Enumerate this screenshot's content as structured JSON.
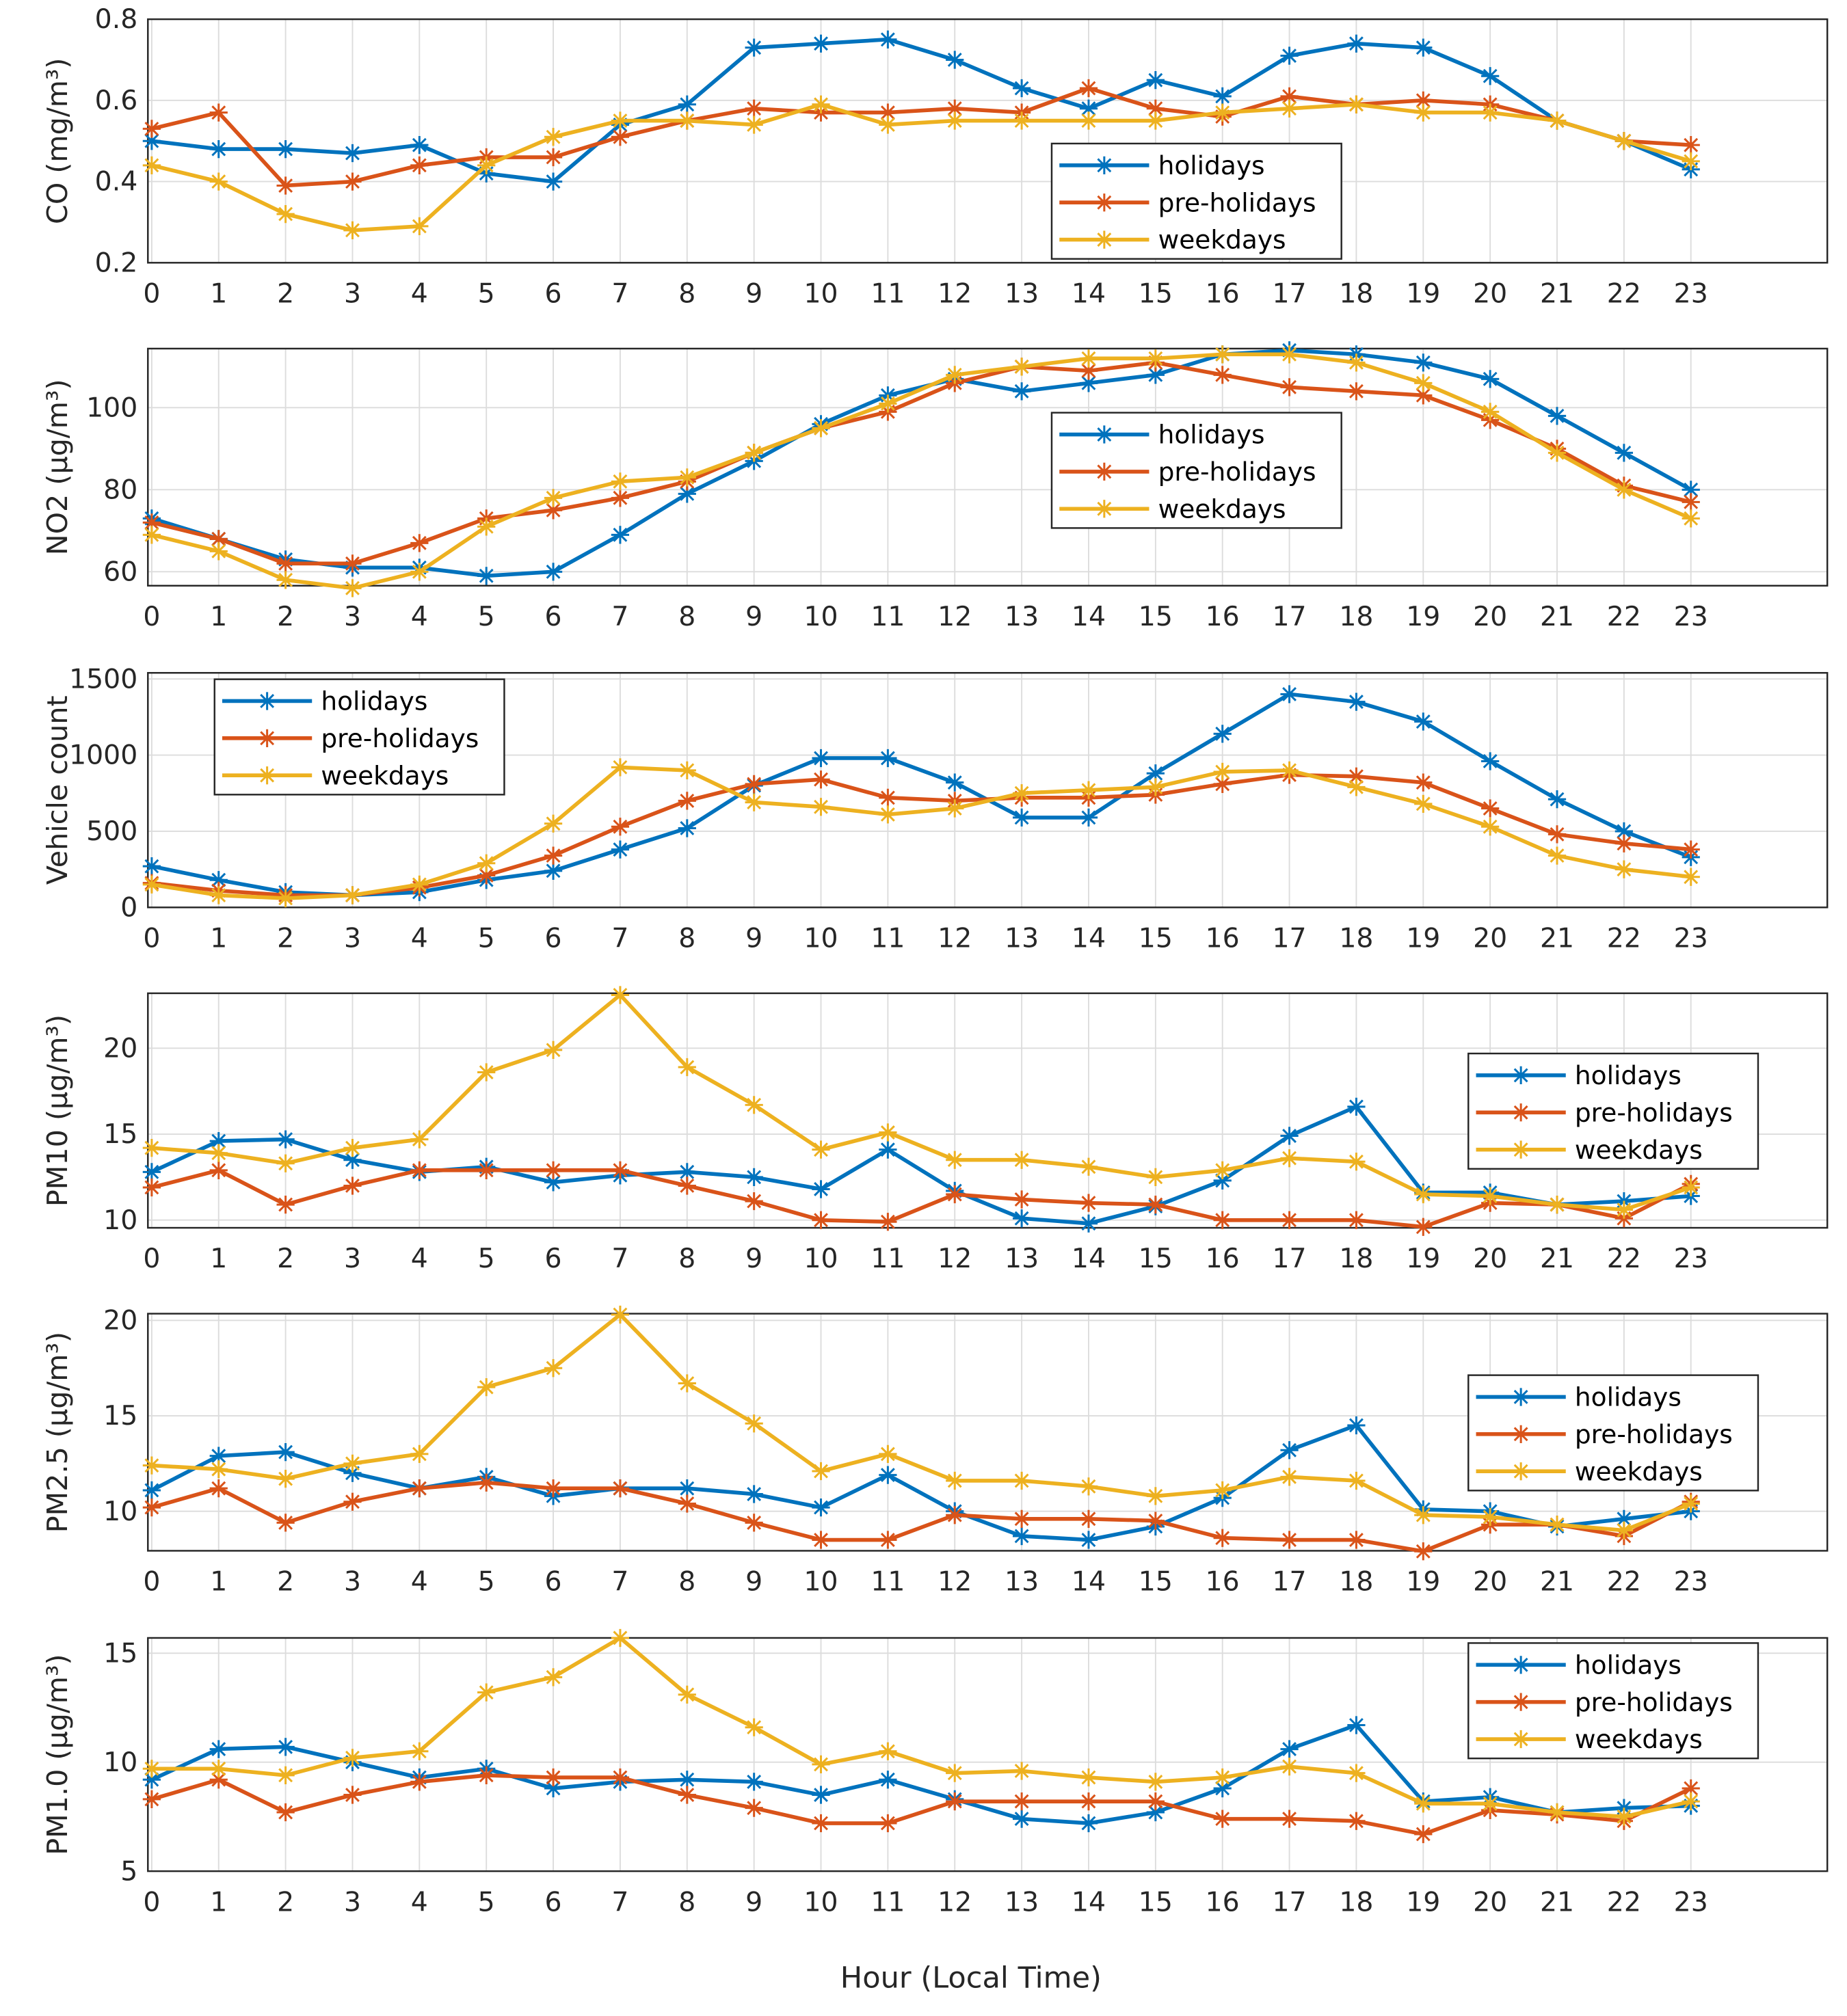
{
  "chart_data": {
    "type": "line",
    "xlabel": "Hour (Local Time)",
    "x": [
      0,
      1,
      2,
      3,
      4,
      5,
      6,
      7,
      8,
      9,
      10,
      11,
      12,
      13,
      14,
      15,
      16,
      17,
      18,
      19,
      20,
      21,
      22,
      23
    ],
    "legend": [
      "holidays",
      "pre-holidays",
      "weekdays"
    ],
    "colors": {
      "holidays": "#0072BD",
      "pre-holidays": "#D95319",
      "weekdays": "#EDB120"
    },
    "grid": true,
    "panels": [
      {
        "ylabel": "CO (mg/m³)",
        "ylim": [
          0.2,
          0.8
        ],
        "yticks": [
          "0.2",
          "0.4",
          "0.6",
          "0.8"
        ],
        "ytick_values": [
          0.2,
          0.4,
          0.6,
          0.8
        ],
        "legend_placement": "center-right",
        "series": [
          {
            "name": "holidays",
            "values": [
              0.5,
              0.48,
              0.48,
              0.47,
              0.49,
              0.42,
              0.4,
              0.54,
              0.59,
              0.73,
              0.74,
              0.75,
              0.7,
              0.63,
              0.58,
              0.65,
              0.61,
              0.71,
              0.74,
              0.73,
              0.66,
              0.55,
              0.5,
              0.43
            ]
          },
          {
            "name": "pre-holidays",
            "values": [
              0.53,
              0.57,
              0.39,
              0.4,
              0.44,
              0.46,
              0.46,
              0.51,
              0.55,
              0.58,
              0.57,
              0.57,
              0.58,
              0.57,
              0.63,
              0.58,
              0.56,
              0.61,
              0.59,
              0.6,
              0.59,
              0.55,
              0.5,
              0.49
            ]
          },
          {
            "name": "weekdays",
            "values": [
              0.44,
              0.4,
              0.32,
              0.28,
              0.29,
              0.44,
              0.51,
              0.55,
              0.55,
              0.54,
              0.59,
              0.54,
              0.55,
              0.55,
              0.55,
              0.55,
              0.57,
              0.58,
              0.59,
              0.57,
              0.57,
              0.55,
              0.5,
              0.45
            ]
          }
        ]
      },
      {
        "ylabel": "NO2 (µg/m³)",
        "ylim": [
          56.6,
          114.4
        ],
        "yticks": [
          "60",
          "80",
          "100"
        ],
        "ytick_values": [
          60,
          80,
          100
        ],
        "legend_placement": "center-right",
        "series": [
          {
            "name": "holidays",
            "values": [
              73,
              68,
              63,
              61,
              61,
              59,
              60,
              69,
              79,
              87,
              96,
              103,
              107,
              104,
              106,
              108,
              113,
              114,
              113,
              111,
              107,
              98,
              89,
              80
            ]
          },
          {
            "name": "pre-holidays",
            "values": [
              72,
              68,
              62,
              62,
              67,
              73,
              75,
              78,
              82,
              89,
              95,
              99,
              106,
              110,
              109,
              111,
              108,
              105,
              104,
              103,
              97,
              90,
              81,
              77
            ]
          },
          {
            "name": "weekdays",
            "values": [
              69,
              65,
              58,
              56,
              60,
              71,
              78,
              82,
              83,
              89,
              95,
              101,
              108,
              110,
              112,
              112,
              113,
              113,
              111,
              106,
              99,
              89,
              80,
              73
            ]
          }
        ]
      },
      {
        "ylabel": "Vehicle count",
        "ylim": [
          0,
          1540
        ],
        "yticks": [
          "0",
          "500",
          "1000",
          "1500"
        ],
        "ytick_values": [
          0,
          500,
          1000,
          1500
        ],
        "legend_placement": "top-left",
        "series": [
          {
            "name": "holidays",
            "values": [
              270,
              180,
              100,
              80,
              100,
              180,
              240,
              380,
              520,
              800,
              980,
              980,
              820,
              590,
              590,
              880,
              1140,
              1400,
              1350,
              1220,
              960,
              710,
              500,
              330
            ]
          },
          {
            "name": "pre-holidays",
            "values": [
              160,
              110,
              80,
              80,
              130,
              210,
              340,
              530,
              700,
              810,
              840,
              720,
              700,
              720,
              720,
              740,
              810,
              870,
              860,
              820,
              650,
              480,
              420,
              380
            ]
          },
          {
            "name": "weekdays",
            "values": [
              150,
              80,
              60,
              80,
              150,
              290,
              550,
              920,
              900,
              690,
              660,
              610,
              650,
              750,
              770,
              790,
              890,
              900,
              790,
              680,
              530,
              340,
              250,
              200
            ]
          }
        ]
      },
      {
        "ylabel": "PM10 (µg/m³)",
        "ylim": [
          9.55,
          23.2
        ],
        "yticks": [
          "10",
          "15",
          "20"
        ],
        "ytick_values": [
          10,
          15,
          20
        ],
        "legend_placement": "right",
        "series": [
          {
            "name": "holidays",
            "values": [
              12.8,
              14.6,
              14.7,
              13.5,
              12.8,
              13.1,
              12.2,
              12.6,
              12.8,
              12.5,
              11.8,
              14.1,
              11.7,
              10.1,
              9.8,
              10.8,
              12.3,
              14.9,
              16.6,
              11.6,
              11.6,
              10.9,
              11.1,
              11.4
            ]
          },
          {
            "name": "pre-holidays",
            "values": [
              11.9,
              12.9,
              10.9,
              12.0,
              12.9,
              12.9,
              12.9,
              12.9,
              12.0,
              11.1,
              10.0,
              9.9,
              11.5,
              11.2,
              11.0,
              10.9,
              10.0,
              10.0,
              10.0,
              9.6,
              11.0,
              10.9,
              10.1,
              12.1
            ]
          },
          {
            "name": "weekdays",
            "values": [
              14.2,
              13.9,
              13.3,
              14.2,
              14.7,
              18.6,
              19.9,
              23.1,
              18.9,
              16.7,
              14.1,
              15.1,
              13.5,
              13.5,
              13.1,
              12.5,
              12.9,
              13.6,
              13.4,
              11.5,
              11.4,
              10.9,
              10.6,
              11.9
            ]
          }
        ]
      },
      {
        "ylabel": "PM2.5 (µg/m³)",
        "ylim": [
          7.93,
          20.35
        ],
        "yticks": [
          "10",
          "15",
          "20"
        ],
        "ytick_values": [
          10,
          15,
          20
        ],
        "legend_placement": "right",
        "series": [
          {
            "name": "holidays",
            "values": [
              11.1,
              12.9,
              13.1,
              12.0,
              11.2,
              11.8,
              10.8,
              11.2,
              11.2,
              10.9,
              10.2,
              11.9,
              10.0,
              8.7,
              8.5,
              9.2,
              10.7,
              13.2,
              14.5,
              10.1,
              10.0,
              9.2,
              9.6,
              10.0
            ]
          },
          {
            "name": "pre-holidays",
            "values": [
              10.2,
              11.2,
              9.4,
              10.5,
              11.2,
              11.5,
              11.2,
              11.2,
              10.4,
              9.4,
              8.5,
              8.5,
              9.8,
              9.6,
              9.6,
              9.5,
              8.6,
              8.5,
              8.5,
              7.9,
              9.3,
              9.3,
              8.7,
              10.5
            ]
          },
          {
            "name": "weekdays",
            "values": [
              12.4,
              12.2,
              11.7,
              12.5,
              13.0,
              16.5,
              17.5,
              20.3,
              16.7,
              14.6,
              12.1,
              13.0,
              11.6,
              11.6,
              11.3,
              10.8,
              11.1,
              11.8,
              11.6,
              9.8,
              9.7,
              9.3,
              9.0,
              10.4
            ]
          }
        ]
      },
      {
        "ylabel": "PM1.0 (µg/m³)",
        "ylim": [
          5,
          15.7
        ],
        "yticks": [
          "5",
          "10",
          "15"
        ],
        "ytick_values": [
          5,
          10,
          15
        ],
        "legend_placement": "top-right",
        "series": [
          {
            "name": "holidays",
            "values": [
              9.2,
              10.6,
              10.7,
              10.0,
              9.3,
              9.7,
              8.8,
              9.1,
              9.2,
              9.1,
              8.5,
              9.2,
              8.3,
              7.4,
              7.2,
              7.7,
              8.8,
              10.6,
              11.7,
              8.2,
              8.4,
              7.7,
              7.9,
              8.0
            ]
          },
          {
            "name": "pre-holidays",
            "values": [
              8.3,
              9.2,
              7.7,
              8.5,
              9.1,
              9.4,
              9.3,
              9.3,
              8.5,
              7.9,
              7.2,
              7.2,
              8.2,
              8.2,
              8.2,
              8.2,
              7.4,
              7.4,
              7.3,
              6.7,
              7.8,
              7.6,
              7.3,
              8.8
            ]
          },
          {
            "name": "weekdays",
            "values": [
              9.7,
              9.7,
              9.4,
              10.2,
              10.5,
              13.2,
              13.9,
              15.7,
              13.1,
              11.6,
              9.9,
              10.5,
              9.5,
              9.6,
              9.3,
              9.1,
              9.3,
              9.8,
              9.5,
              8.1,
              8.1,
              7.7,
              7.5,
              8.2
            ]
          }
        ]
      }
    ]
  }
}
